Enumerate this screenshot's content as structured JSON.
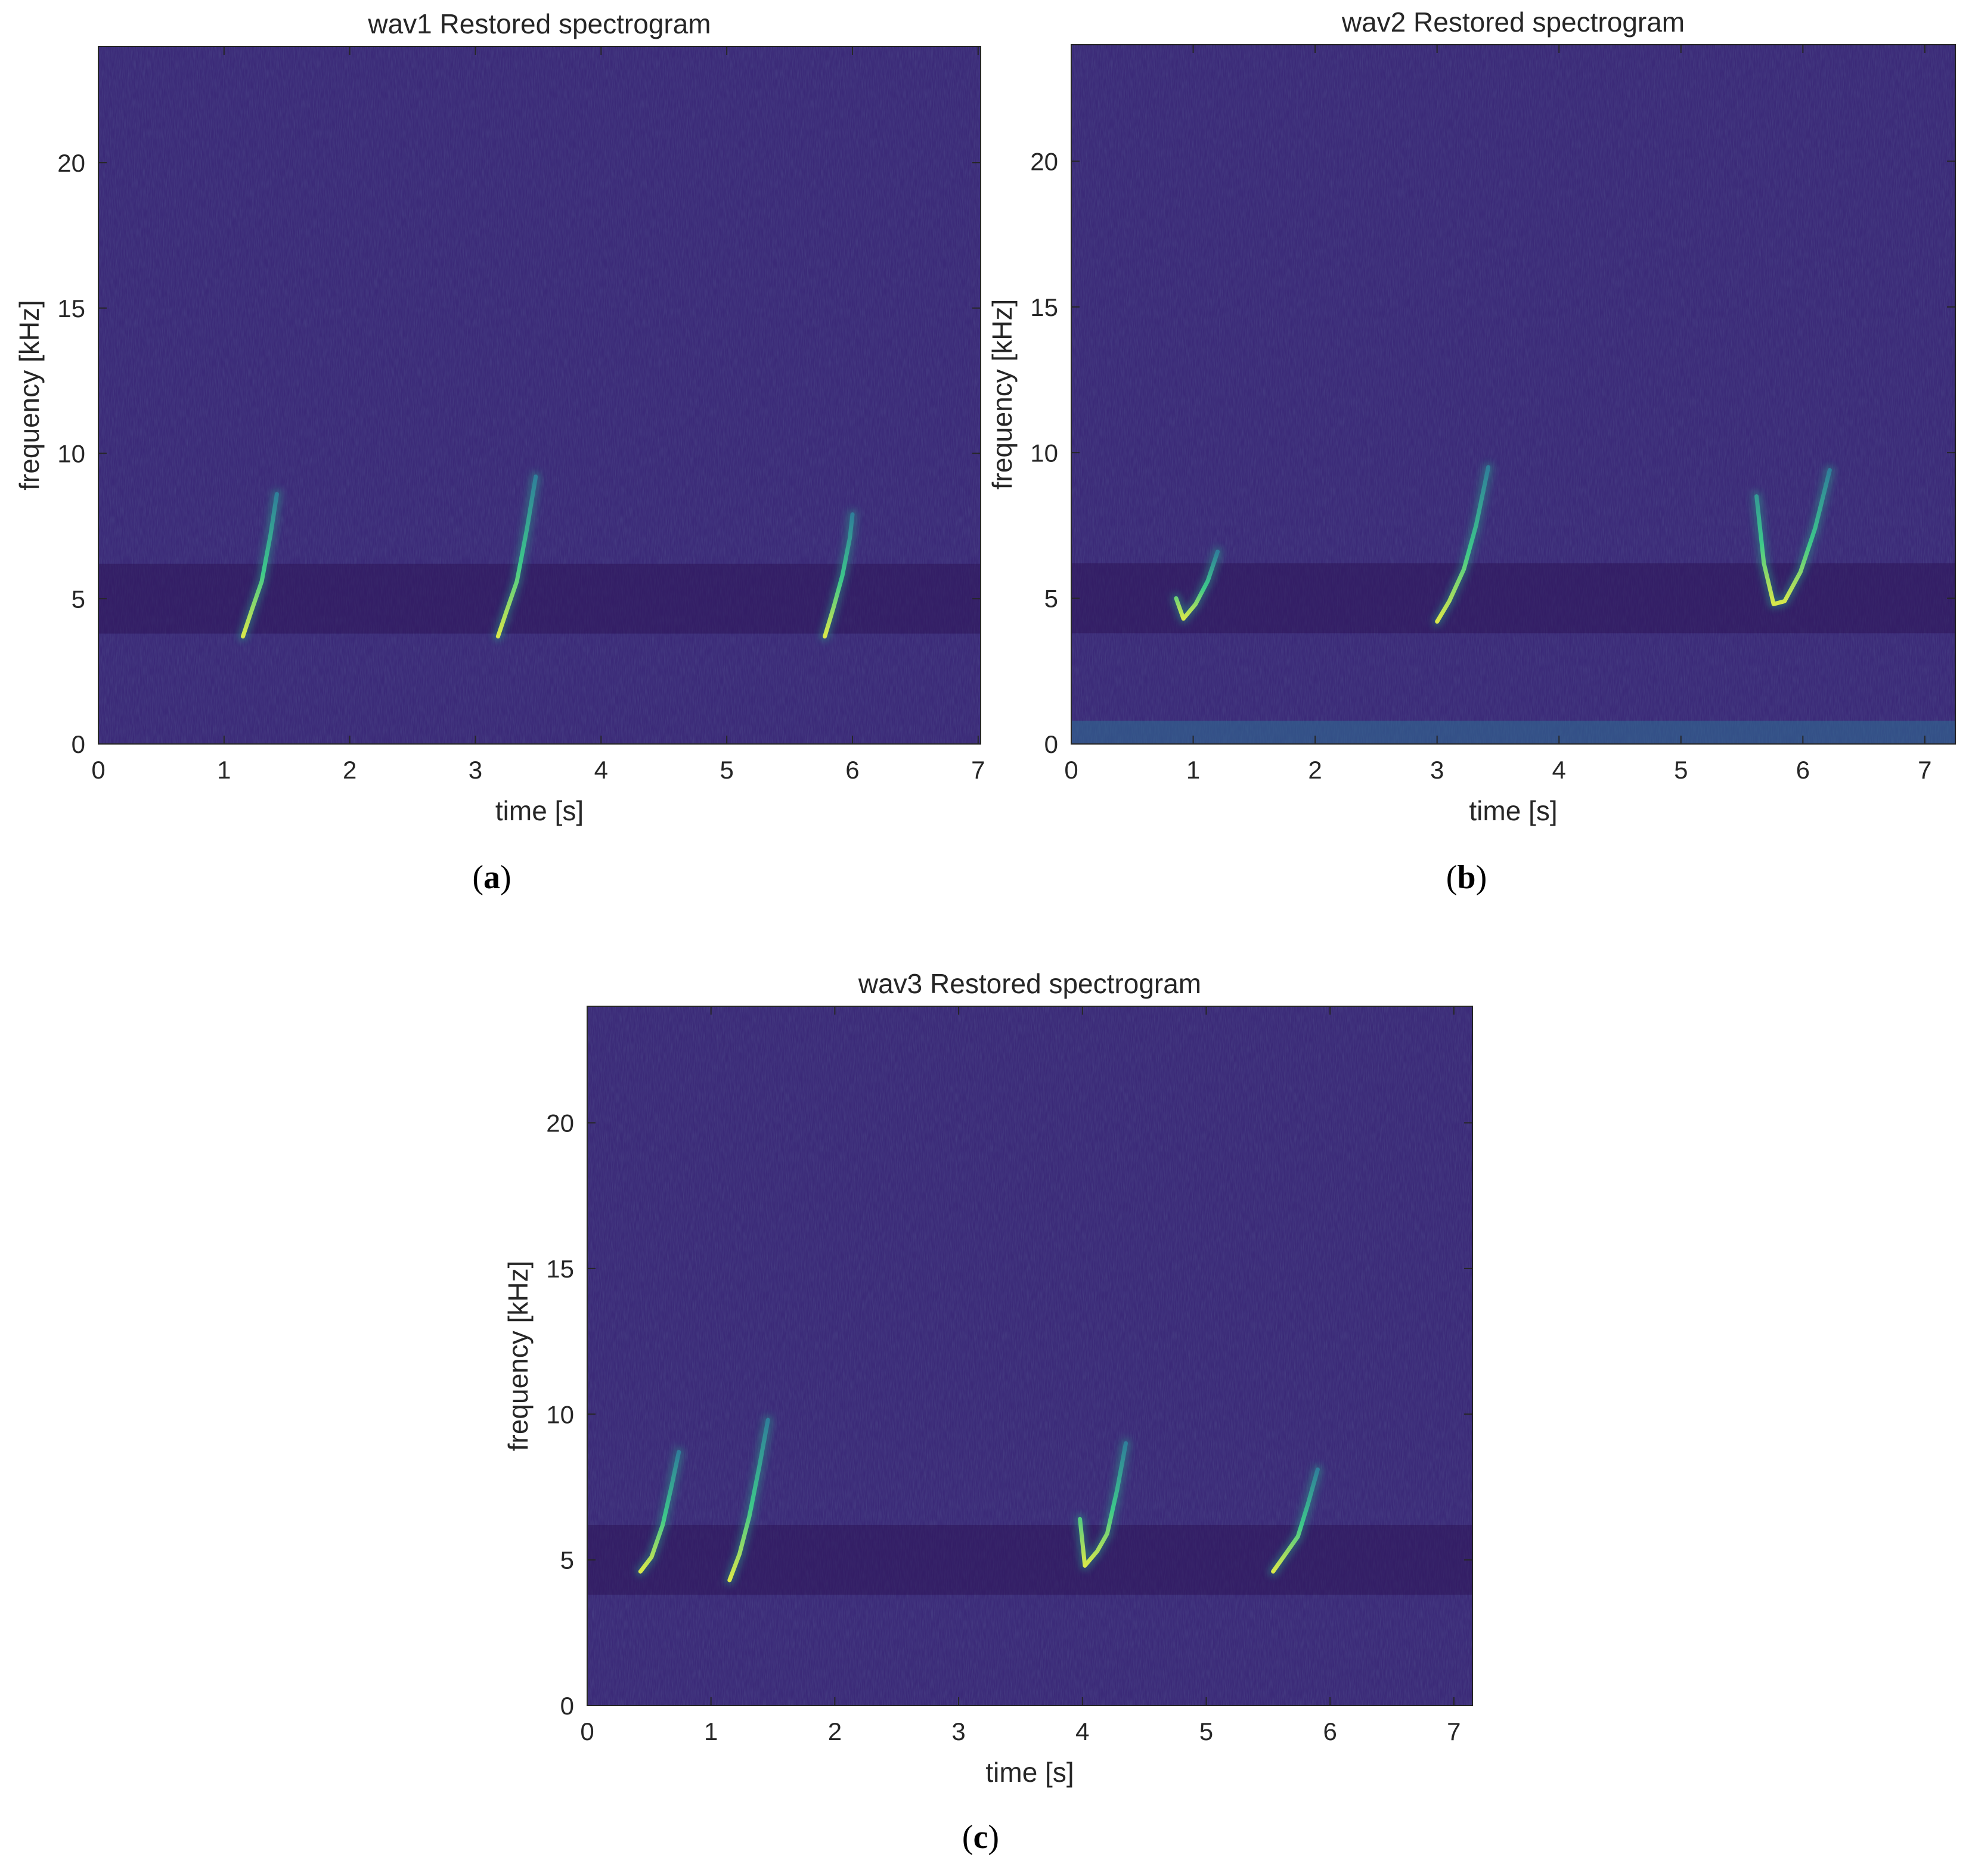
{
  "chart_data": [
    {
      "type": "heatmap",
      "title": "wav1 Restored spectrogram",
      "xlabel": "time [s]",
      "ylabel": "frequency [kHz]",
      "xlim": [
        0,
        7.02
      ],
      "ylim": [
        0,
        24
      ],
      "xticks": [
        0,
        1,
        2,
        3,
        4,
        5,
        6,
        7
      ],
      "yticks": [
        0,
        5,
        10,
        15,
        20
      ],
      "colormap": "viridis",
      "background_color": "#3b2a78",
      "caption_letter": "a",
      "calls": [
        {
          "points": [
            [
              1.15,
              3.7
            ],
            [
              1.22,
              4.6
            ],
            [
              1.3,
              5.6
            ],
            [
              1.37,
              7.2
            ],
            [
              1.42,
              8.6
            ]
          ]
        },
        {
          "points": [
            [
              3.18,
              3.7
            ],
            [
              3.25,
              4.6
            ],
            [
              3.33,
              5.6
            ],
            [
              3.41,
              7.4
            ],
            [
              3.48,
              9.2
            ]
          ]
        },
        {
          "points": [
            [
              5.78,
              3.7
            ],
            [
              5.85,
              4.7
            ],
            [
              5.92,
              5.8
            ],
            [
              5.98,
              7.1
            ],
            [
              6.0,
              7.9
            ]
          ]
        }
      ]
    },
    {
      "type": "heatmap",
      "title": "wav2 Restored spectrogram",
      "xlabel": "time [s]",
      "ylabel": "frequency [kHz]",
      "xlim": [
        0,
        7.25
      ],
      "ylim": [
        0,
        24
      ],
      "xticks": [
        0,
        1,
        2,
        3,
        4,
        5,
        6,
        7
      ],
      "yticks": [
        0,
        5,
        10,
        15,
        20
      ],
      "colormap": "viridis",
      "background_color": "#3b2a78",
      "caption_letter": "b",
      "calls": [
        {
          "points": [
            [
              0.86,
              5.0
            ],
            [
              0.92,
              4.3
            ],
            [
              1.02,
              4.8
            ],
            [
              1.12,
              5.6
            ],
            [
              1.2,
              6.6
            ]
          ]
        },
        {
          "points": [
            [
              3.0,
              4.2
            ],
            [
              3.1,
              4.9
            ],
            [
              3.22,
              6.0
            ],
            [
              3.32,
              7.5
            ],
            [
              3.42,
              9.5
            ]
          ]
        },
        {
          "points": [
            [
              5.62,
              8.5
            ],
            [
              5.68,
              6.2
            ],
            [
              5.76,
              4.8
            ],
            [
              5.85,
              4.9
            ],
            [
              5.98,
              5.9
            ],
            [
              6.1,
              7.4
            ],
            [
              6.22,
              9.4
            ]
          ]
        }
      ]
    },
    {
      "type": "heatmap",
      "title": "wav3 Restored spectrogram",
      "xlabel": "time [s]",
      "ylabel": "frequency [kHz]",
      "xlim": [
        0,
        7.15
      ],
      "ylim": [
        0,
        24
      ],
      "xticks": [
        0,
        1,
        2,
        3,
        4,
        5,
        6,
        7
      ],
      "yticks": [
        0,
        5,
        10,
        15,
        20
      ],
      "colormap": "viridis",
      "background_color": "#3b2a78",
      "caption_letter": "c",
      "calls": [
        {
          "points": [
            [
              0.43,
              4.6
            ],
            [
              0.52,
              5.1
            ],
            [
              0.61,
              6.2
            ],
            [
              0.68,
              7.5
            ],
            [
              0.74,
              8.7
            ]
          ]
        },
        {
          "points": [
            [
              1.15,
              4.3
            ],
            [
              1.23,
              5.2
            ],
            [
              1.31,
              6.5
            ],
            [
              1.39,
              8.2
            ],
            [
              1.46,
              9.8
            ]
          ]
        },
        {
          "points": [
            [
              3.98,
              6.4
            ],
            [
              4.02,
              4.8
            ],
            [
              4.12,
              5.3
            ],
            [
              4.2,
              5.9
            ],
            [
              4.28,
              7.4
            ],
            [
              4.35,
              9.0
            ]
          ]
        },
        {
          "points": [
            [
              5.54,
              4.6
            ],
            [
              5.64,
              5.2
            ],
            [
              5.74,
              5.8
            ],
            [
              5.82,
              6.9
            ],
            [
              5.9,
              8.1
            ]
          ]
        }
      ]
    }
  ]
}
